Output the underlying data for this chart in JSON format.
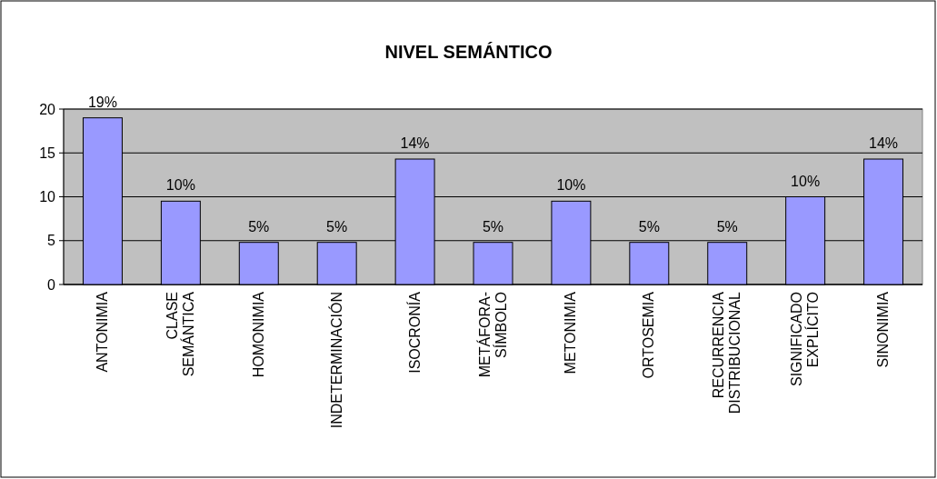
{
  "chart_data": {
    "type": "bar",
    "title": "NIVEL SEMÁNTICO",
    "categories": [
      "ANTONIMIA",
      "CLASE SEMÁNTICA",
      "HOMONIMIA",
      "INDETERMINACIÓN",
      "ISOCRONÍA",
      "METÁFORA-SÍMBOLO",
      "METONIMIA",
      "ORTOSEMIA",
      "RECURRENCIA DISTRIBUCIONAL",
      "SIGNIFICADO EXPLÍCITO",
      "SINONIMIA"
    ],
    "values": [
      19,
      9.5,
      4.8,
      4.8,
      14.3,
      4.8,
      9.5,
      4.8,
      4.8,
      10,
      14.3
    ],
    "value_labels": [
      "19%",
      "10%",
      "5%",
      "5%",
      "14%",
      "5%",
      "10%",
      "5%",
      "5%",
      "10%",
      "14%"
    ],
    "color": "#9999ff",
    "ylim": [
      0,
      20
    ],
    "yticks": [
      0,
      5,
      10,
      15,
      20
    ],
    "grid": "y"
  }
}
